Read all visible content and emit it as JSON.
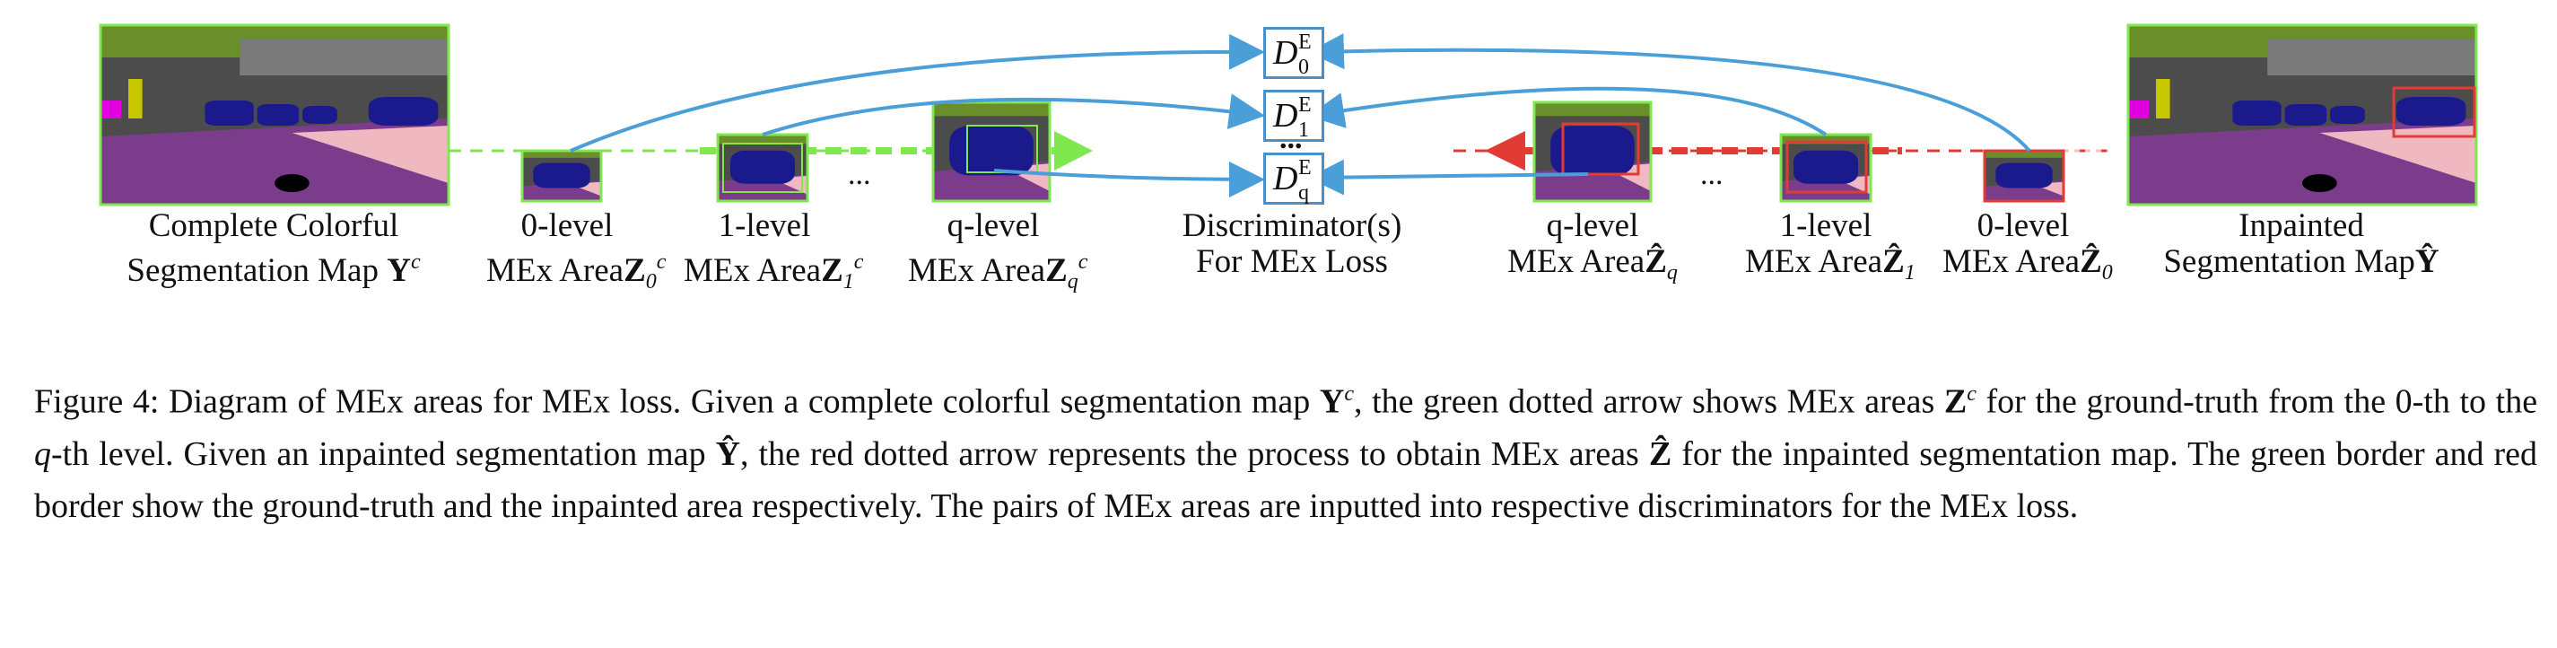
{
  "figure": {
    "left_map_label": [
      "Complete Colorful",
      "Segmentation Map"
    ],
    "left_map_symbol": "Y",
    "left_levels": [
      {
        "level": "0-level",
        "area": "MEx Area",
        "sym": "Z",
        "sub": "0",
        "sup": "c"
      },
      {
        "level": "1-level",
        "area": "MEx Area",
        "sym": "Z",
        "sub": "1",
        "sup": "c"
      },
      {
        "level": "q-level",
        "area": "MEx Area",
        "sym": "Z",
        "sub": "q",
        "sup": "c"
      }
    ],
    "ellipsis": "...",
    "discriminator_label": [
      "Discriminator(s)",
      "For MEx Loss"
    ],
    "discriminators": [
      {
        "base": "D",
        "sup": "E",
        "sub": "0"
      },
      {
        "base": "D",
        "sup": "E",
        "sub": "1"
      },
      {
        "base": "D",
        "sup": "E",
        "sub": "q"
      }
    ],
    "discriminator_ellipsis": "...",
    "right_levels": [
      {
        "level": "q-level",
        "area": "MEx Area",
        "sym": "Ẑ",
        "sub": "q"
      },
      {
        "level": "1-level",
        "area": "MEx Area",
        "sym": "Ẑ",
        "sub": "1"
      },
      {
        "level": "0-level",
        "area": "MEx Area",
        "sym": "Ẑ",
        "sub": "0"
      }
    ],
    "right_map_label": [
      "Inpainted",
      "Segmentation Map"
    ],
    "right_map_symbol": "Ŷ",
    "colors": {
      "ground_truth_arrow": "#7ee84e",
      "inpainted_arrow": "#e03b35",
      "connector": "#4a9fd8",
      "sky": "#4c4c4c",
      "road": "#7b3c8c",
      "sidewalk": "#f0b8c0",
      "vegetation": "#6a8e2a",
      "car": "#1a1a8c"
    }
  },
  "caption": {
    "figure_label": "Figure 4:",
    "s1": "Diagram of MEx areas for MEx loss. Given a complete colorful segmentation map",
    "s2": ", the green dotted arrow shows MEx areas",
    "s3": "for the ground-truth from the 0-th to the",
    "q": "q",
    "s4": "-th level.  Given an inpainted segmentation map",
    "s5": ", the red dotted arrow represents the process to obtain MEx areas",
    "s6": "for the inpainted segmentation map. The green border and red border show the ground-truth and the inpainted area respectively. The pairs of MEx areas are inputted into respective discriminators for the MEx loss."
  }
}
